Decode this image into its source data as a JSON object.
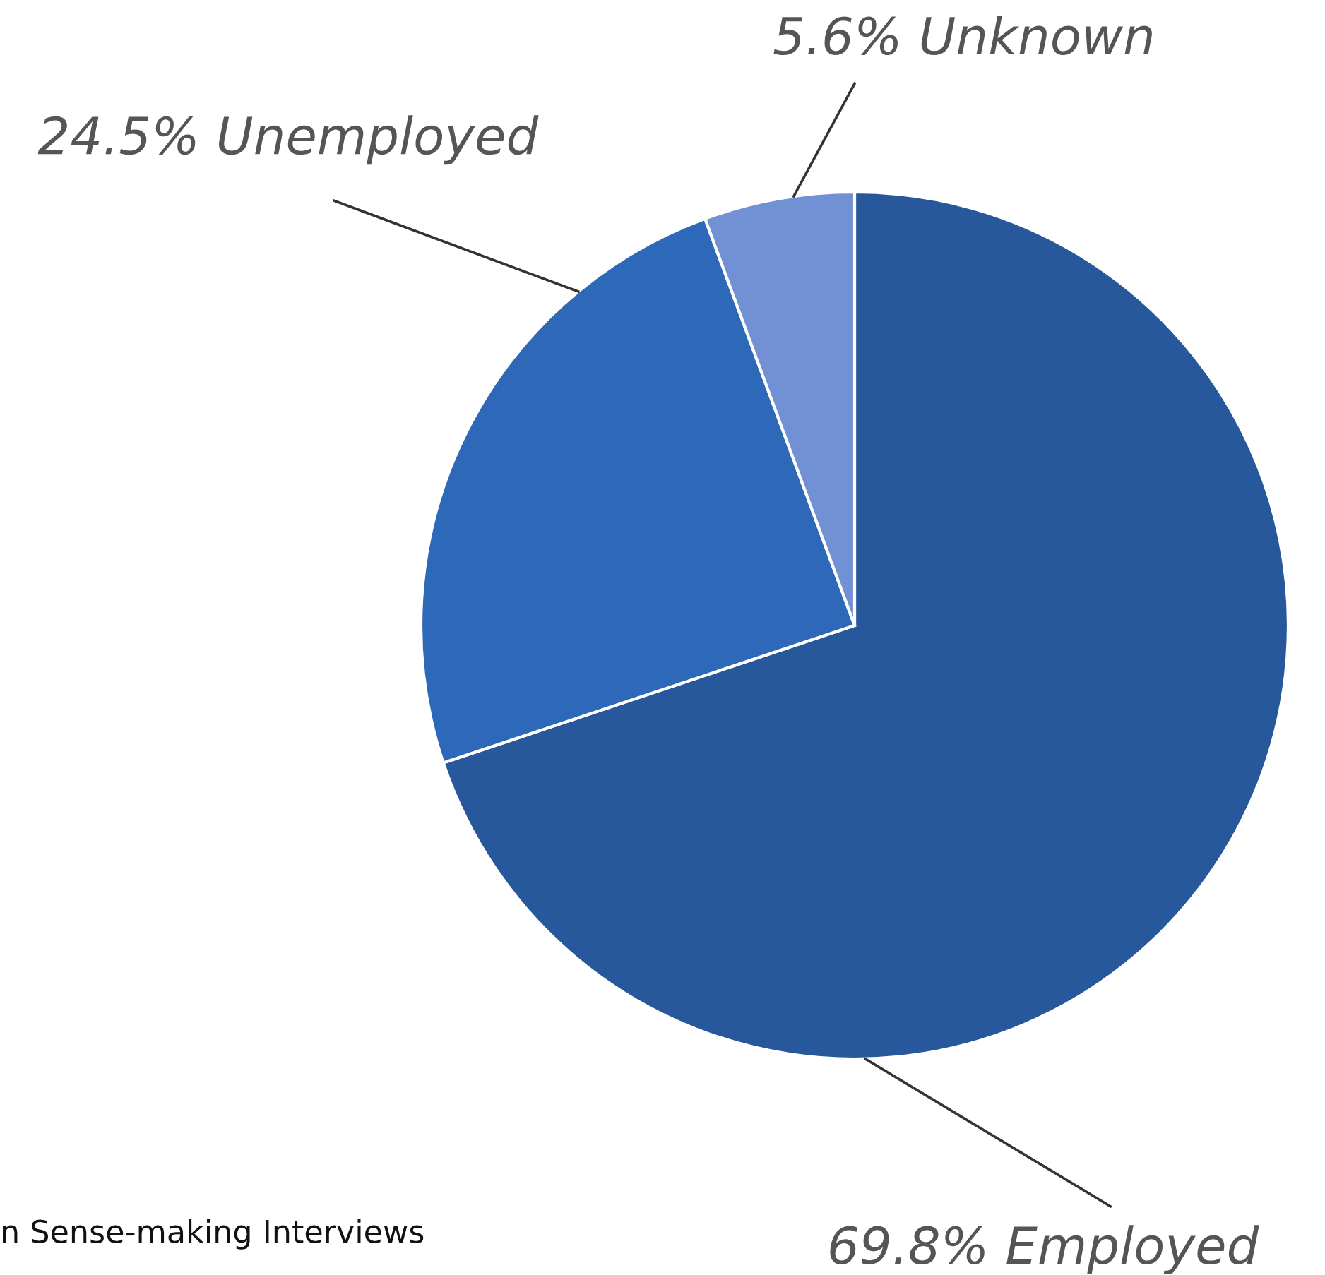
{
  "chart_data": {
    "type": "pie",
    "categories": [
      "Employed",
      "Unemployed",
      "Unknown"
    ],
    "values": [
      69.8,
      24.5,
      5.6
    ],
    "colors": [
      "#27589c",
      "#2e68b8",
      "#7290d4"
    ],
    "value_labels": [
      "69.8%",
      "24.5%",
      "5.6%"
    ],
    "annotations": [
      "n Sense-making Interviews"
    ]
  }
}
